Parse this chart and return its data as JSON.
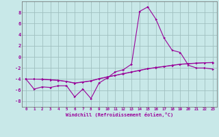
{
  "xlabel": "Windchill (Refroidissement éolien,°C)",
  "background_color": "#c8e8e8",
  "grid_color": "#a0c0c0",
  "line_color": "#990099",
  "x_values": [
    0,
    1,
    2,
    3,
    4,
    5,
    6,
    7,
    8,
    9,
    10,
    11,
    12,
    13,
    14,
    15,
    16,
    17,
    18,
    19,
    20,
    21,
    22,
    23
  ],
  "line1_y": [
    -4.0,
    -4.0,
    -4.0,
    -4.1,
    -4.2,
    -4.4,
    -4.7,
    -4.5,
    -4.3,
    -3.9,
    -3.6,
    -3.3,
    -3.0,
    -2.7,
    -2.4,
    -2.1,
    -1.9,
    -1.7,
    -1.5,
    -1.3,
    -1.2,
    -1.1,
    -1.05,
    -1.0
  ],
  "line2_y": [
    -4.0,
    -4.0,
    -4.05,
    -4.15,
    -4.25,
    -4.45,
    -4.75,
    -4.55,
    -4.35,
    -3.95,
    -3.65,
    -3.35,
    -3.05,
    -2.75,
    -2.45,
    -2.15,
    -1.95,
    -1.75,
    -1.55,
    -1.35,
    -1.25,
    -1.15,
    -1.08,
    -1.05
  ],
  "line3_y": [
    -4.0,
    -5.8,
    -5.4,
    -5.5,
    -5.2,
    -5.2,
    -7.2,
    -5.8,
    -7.5,
    -4.7,
    -3.8,
    -2.7,
    -2.3,
    -1.3,
    8.2,
    9.0,
    6.8,
    3.4,
    1.2,
    0.8,
    -1.5,
    -2.0,
    -2.0,
    -2.2
  ],
  "ylim": [
    -9,
    10
  ],
  "xlim": [
    -0.5,
    23.5
  ],
  "yticks": [
    -8,
    -6,
    -4,
    -2,
    0,
    2,
    4,
    6,
    8
  ],
  "xticks": [
    0,
    1,
    2,
    3,
    4,
    5,
    6,
    7,
    8,
    9,
    10,
    11,
    12,
    13,
    14,
    15,
    16,
    17,
    18,
    19,
    20,
    21,
    22,
    23
  ]
}
